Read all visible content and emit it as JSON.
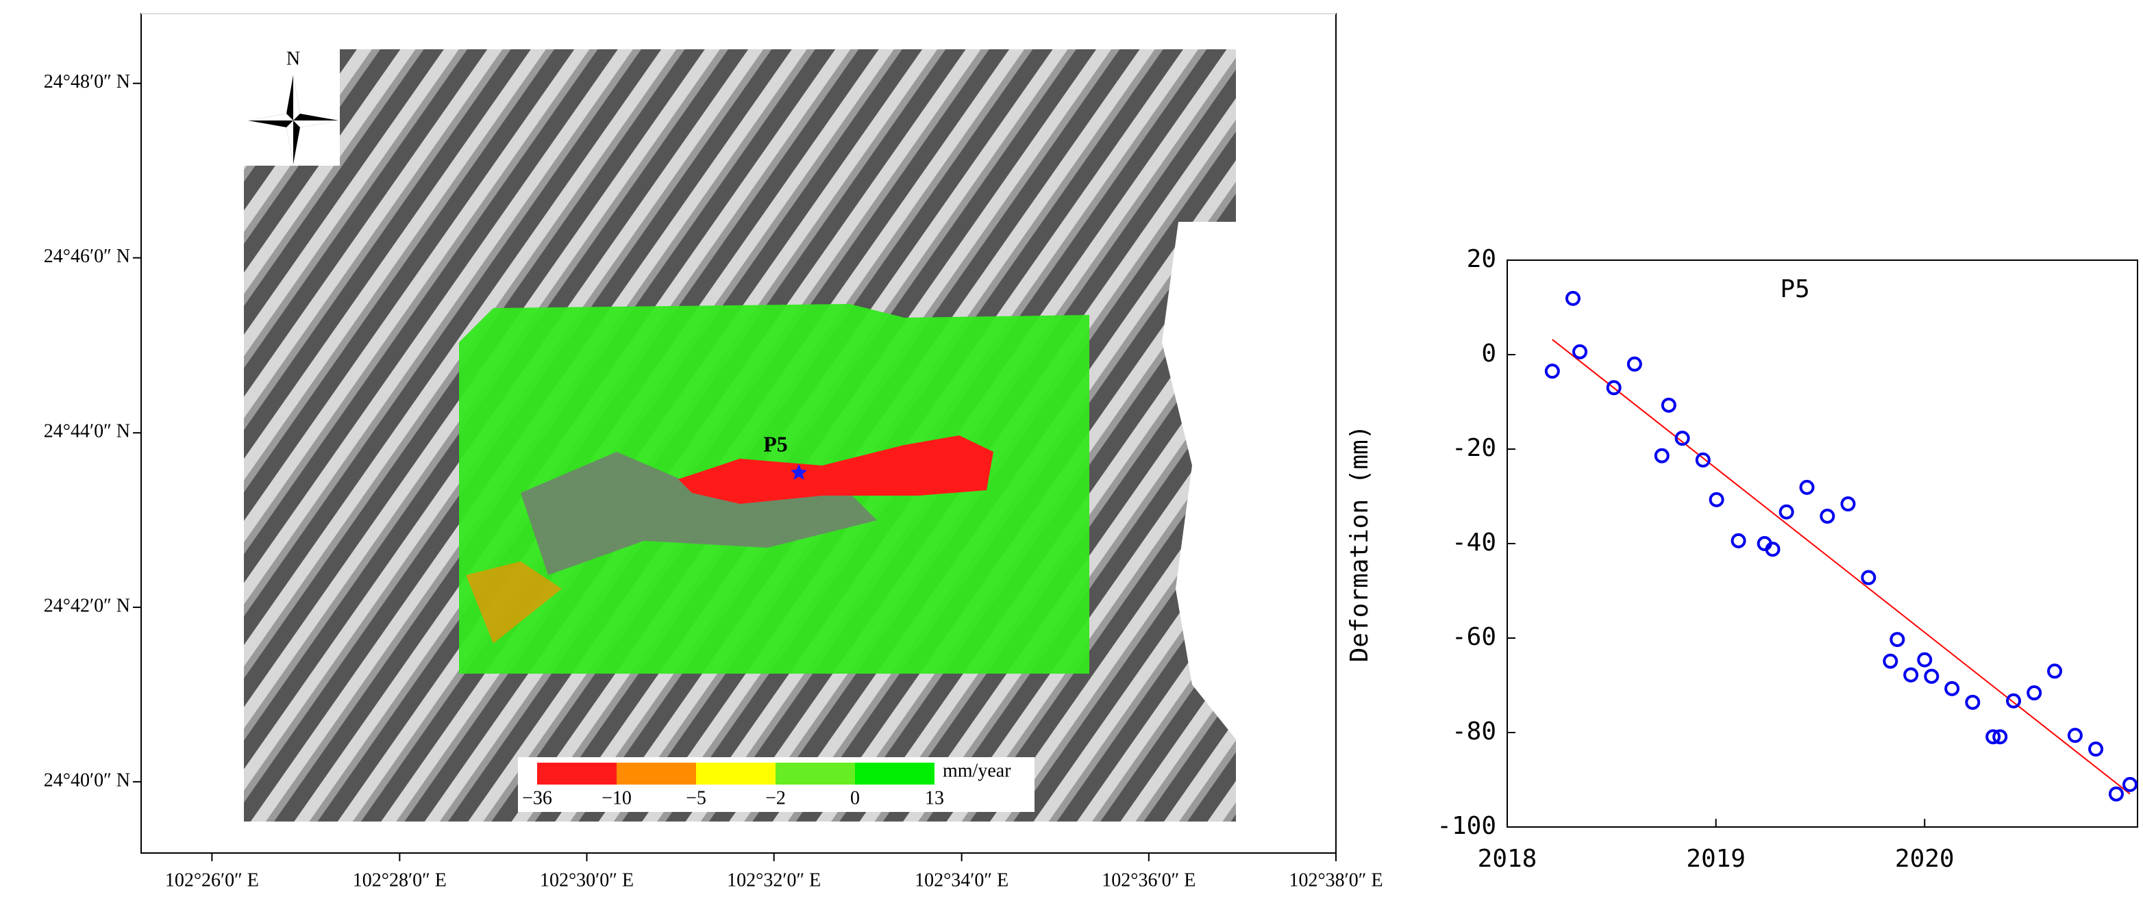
{
  "chart_data": [
    {
      "type": "map",
      "xlim": [
        102.4207,
        102.6333
      ],
      "ylim": [
        24.6531,
        24.8133
      ],
      "xticks": [
        {
          "value": 102.4333,
          "label": "102°26′0″ E"
        },
        {
          "value": 102.4667,
          "label": "102°28′0″ E"
        },
        {
          "value": 102.5,
          "label": "102°30′0″ E"
        },
        {
          "value": 102.5333,
          "label": "102°32′0″ E"
        },
        {
          "value": 102.5667,
          "label": "102°34′0″ E"
        },
        {
          "value": 102.6,
          "label": "102°36′0″ E"
        },
        {
          "value": 102.6333,
          "label": "102°38′0″ E"
        }
      ],
      "yticks": [
        {
          "value": 24.8,
          "label": "24°48′0″ N"
        },
        {
          "value": 24.7667,
          "label": "24°46′0″ N"
        },
        {
          "value": 24.7333,
          "label": "24°44′0″ N"
        },
        {
          "value": 24.7,
          "label": "24°42′0″ N"
        },
        {
          "value": 24.6667,
          "label": "24°40′0″ N"
        }
      ],
      "north_label": "N",
      "point_label": "P5",
      "legend": {
        "labels": [
          "−36",
          "−10",
          "−5",
          "−2",
          "0",
          "13"
        ],
        "colors": [
          "#ff1a1a",
          "#ff8c00",
          "#ffff00",
          "#66ee22",
          "#00ee00"
        ],
        "unit": "mm/year"
      }
    },
    {
      "type": "scatter",
      "title": "P5",
      "y_label": "Deformation (mm)",
      "xlim": [
        2018,
        2021.02
      ],
      "ylim": [
        -100,
        20
      ],
      "xticks": [
        2018,
        2019,
        2020
      ],
      "yticks": [
        20,
        0,
        -20,
        -40,
        -60,
        -80,
        -100
      ],
      "color": "#0000ee",
      "x": [
        2018.216,
        2018.315,
        2018.348,
        2018.511,
        2018.61,
        2018.741,
        2018.774,
        2018.839,
        2018.938,
        2019.003,
        2019.108,
        2019.233,
        2019.272,
        2019.338,
        2019.436,
        2019.534,
        2019.633,
        2019.731,
        2019.836,
        2019.869,
        2019.934,
        2020.0,
        2020.033,
        2020.131,
        2020.23,
        2020.328,
        2020.361,
        2020.426,
        2020.525,
        2020.623,
        2020.721,
        2020.82,
        2020.918,
        2020.984
      ],
      "values": [
        -3.5,
        11.9,
        0.6,
        -7.0,
        -2.0,
        -21.4,
        -10.7,
        -17.7,
        -22.3,
        -30.7,
        -39.4,
        -40.0,
        -41.2,
        -33.3,
        -28.1,
        -34.2,
        -31.6,
        -47.2,
        -64.9,
        -60.3,
        -67.8,
        -64.6,
        -68.1,
        -70.7,
        -73.6,
        -80.9,
        -80.9,
        -73.3,
        -71.6,
        -67.0,
        -80.6,
        -83.5,
        -93.0,
        -91.0
      ],
      "trend_line": {
        "color": "#ff0000",
        "x": [
          2018.216,
          2020.984
        ],
        "values": [
          3.2,
          -93.0
        ]
      }
    }
  ]
}
